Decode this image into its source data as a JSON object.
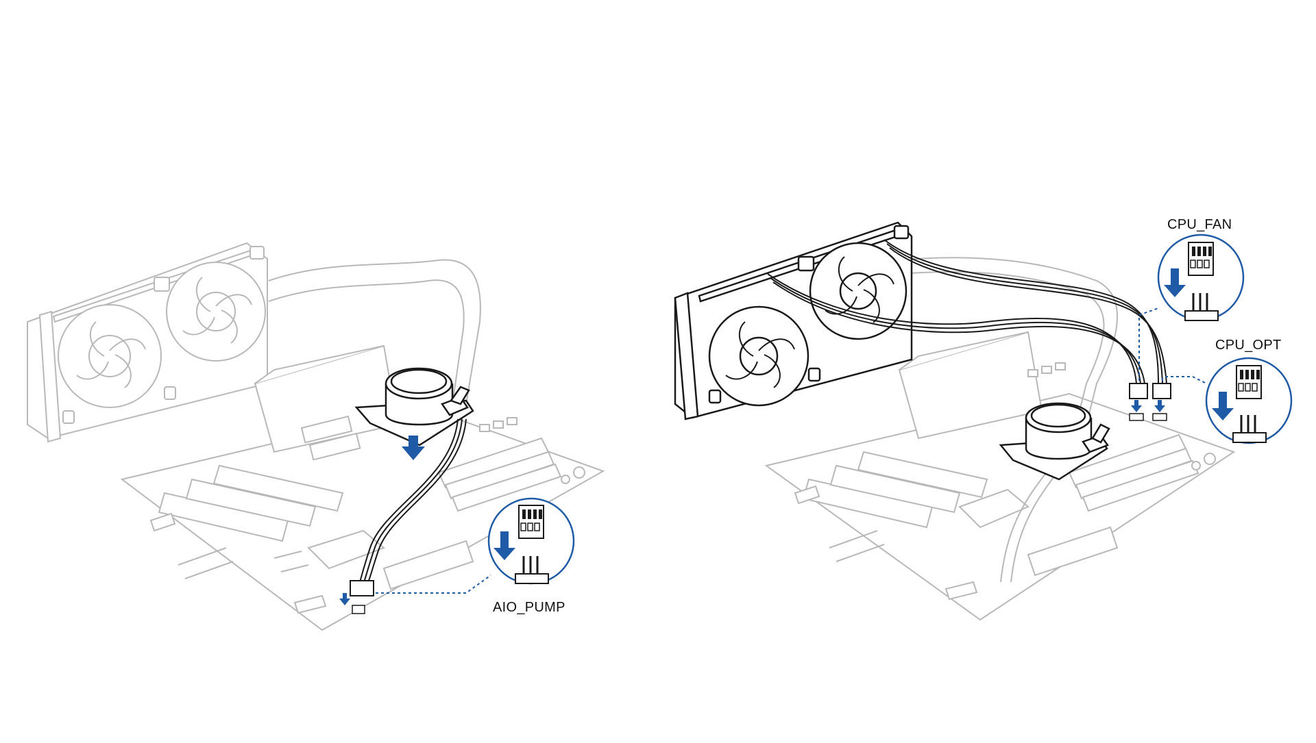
{
  "colors": {
    "accent_blue": "#1f5aa6",
    "ghost_line": "#b8b8b8",
    "dark_line": "#1a1a1a",
    "background": "#ffffff"
  },
  "labels": {
    "aio_pump": "AIO_PUMP",
    "cpu_fan": "CPU_FAN",
    "cpu_opt": "CPU_OPT"
  },
  "icons": {
    "arrow": "down-arrow-icon",
    "connector": "fan-header-connector-icon"
  }
}
